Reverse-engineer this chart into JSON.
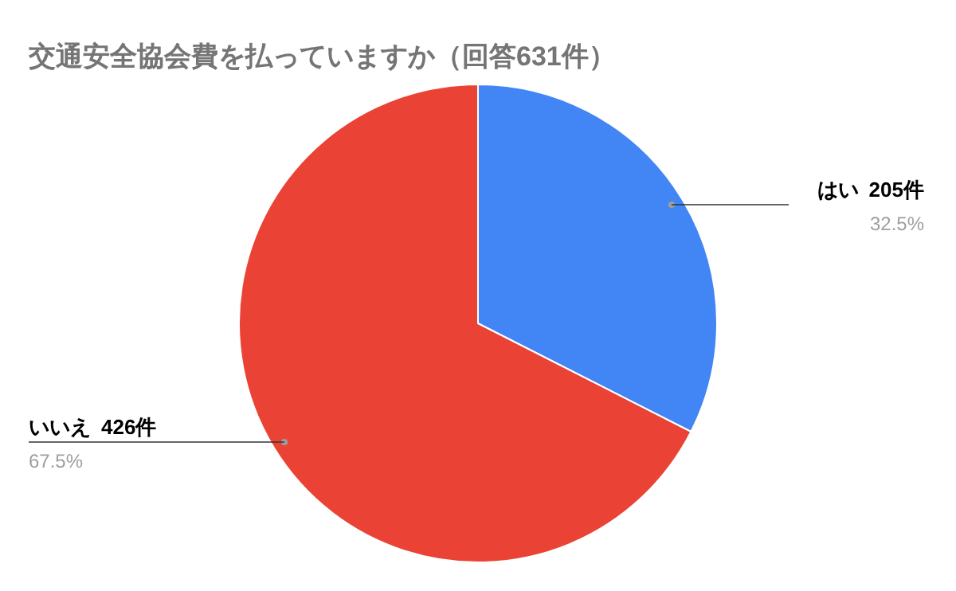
{
  "chart_data": {
    "type": "pie",
    "title": "交通安全協会費を払っていますか（回答631件）",
    "categories": [
      "はい",
      "いいえ"
    ],
    "values": [
      205,
      426
    ],
    "value_labels": [
      "205件",
      "426件"
    ],
    "colors": [
      "#4285f4",
      "#ea4335"
    ],
    "annotations": [
      "32.5%",
      "67.5%"
    ],
    "legend": false
  }
}
